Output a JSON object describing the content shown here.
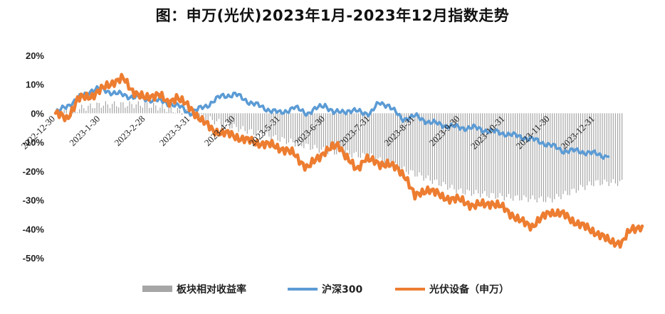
{
  "chart_data": {
    "type": "line",
    "title": "图：申万(光伏)2023年1月-2023年12月指数走势",
    "y_tick_labels": [
      "20%",
      "10%",
      "0%",
      "-10%",
      "-20%",
      "-30%",
      "-40%",
      "-50%"
    ],
    "x_tick_labels": [
      "2022-12-30",
      "2023-1-30",
      "2023-2-28",
      "2023-3-31",
      "2023-4-30",
      "2023-5-31",
      "2023-6-30",
      "2023-7-31",
      "2023-8-31",
      "2023-9-30",
      "2023-10-31",
      "2023-11-30",
      "2023-12-31"
    ],
    "ylim": [
      -50,
      20
    ],
    "grid": false,
    "legend_position": "bottom",
    "series": [
      {
        "name": "板块相对收益率",
        "kind": "bar",
        "color": "#a6a6a6",
        "x": [
          0,
          1,
          2,
          3,
          4,
          5,
          6,
          7,
          8,
          9,
          10,
          11,
          12
        ],
        "values": [
          0,
          3,
          3,
          0,
          -5,
          -9,
          -13,
          -15,
          -21,
          -27,
          -29,
          -30,
          -24
        ]
      },
      {
        "name": "沪深300",
        "kind": "line",
        "color": "#5b9bd5",
        "x": [
          0,
          0.4,
          0.8,
          1.0,
          1.3,
          1.6,
          2.0,
          2.4,
          2.8,
          3.0,
          3.4,
          3.7,
          4.0,
          4.3,
          4.6,
          5.0,
          5.3,
          5.6,
          6.0,
          6.2,
          6.5,
          7.0,
          7.2,
          7.4,
          7.7,
          8.0,
          8.3,
          8.6,
          9.0,
          9.3,
          9.6,
          10.0,
          10.3,
          10.6,
          11.0,
          11.3,
          11.6,
          12.0,
          12.3
        ],
        "values": [
          0,
          4,
          8,
          8.5,
          7,
          6,
          5,
          4,
          2,
          0,
          3,
          6,
          6.5,
          4,
          2,
          0,
          2,
          0,
          3,
          0,
          1,
          0,
          3.5,
          3,
          -2,
          -1,
          -3,
          -4,
          -5,
          -5,
          -6,
          -7,
          -8,
          -9,
          -11,
          -13,
          -13,
          -14,
          -15
        ]
      },
      {
        "name": "光伏设备（申万）",
        "kind": "line",
        "color": "#ed7d31",
        "x": [
          0,
          0.25,
          0.5,
          0.8,
          1.0,
          1.3,
          1.5,
          1.7,
          2.0,
          2.3,
          2.5,
          2.7,
          2.9,
          3.1,
          3.5,
          3.8,
          4.0,
          4.4,
          4.8,
          5.0,
          5.3,
          5.6,
          6.0,
          6.3,
          6.7,
          6.9,
          7.2,
          7.4,
          7.8,
          8.0,
          8.3,
          8.6,
          9.0,
          9.3,
          9.7,
          10.0,
          10.3,
          10.6,
          11.0,
          11.3,
          11.6,
          12.0,
          12.3,
          12.6,
          12.8,
          13.05
        ],
        "values": [
          0,
          -2,
          5,
          6,
          8,
          11,
          12,
          8,
          5,
          7,
          3,
          6,
          3,
          0,
          -6,
          -7,
          -8,
          -10,
          -11,
          -12,
          -14,
          -19,
          -13,
          -11,
          -20,
          -15,
          -18,
          -17,
          -22,
          -29,
          -26,
          -29,
          -30,
          -32,
          -31,
          -33,
          -37,
          -39,
          -34,
          -35,
          -38,
          -41,
          -44,
          -45,
          -40,
          -39
        ]
      }
    ]
  }
}
